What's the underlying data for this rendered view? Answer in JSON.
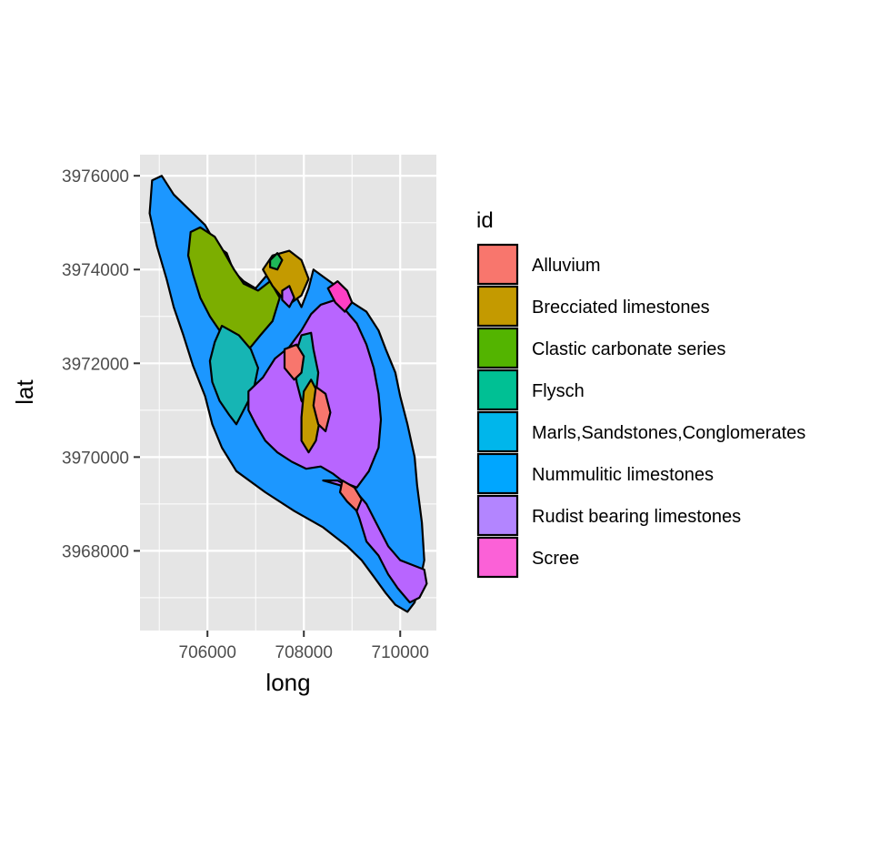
{
  "chart_data": {
    "type": "map",
    "xlabel": "long",
    "ylabel": "lat",
    "xlim": [
      704600,
      710750
    ],
    "ylim": [
      3966300,
      3976450
    ],
    "x_ticks": [
      706000,
      708000,
      710000
    ],
    "y_ticks": [
      3968000,
      3970000,
      3972000,
      3974000,
      3976000
    ],
    "x_tick_labels": [
      "706000",
      "708000",
      "710000"
    ],
    "y_tick_labels": [
      "3968000",
      "3970000",
      "3972000",
      "3974000",
      "3976000"
    ],
    "grid": true,
    "panel_background": "#e5e5e5",
    "grid_color": "#ffffff",
    "outline_color": "#000000",
    "legend": {
      "title": "id",
      "placement": "right",
      "entries": [
        {
          "label": "Alluvium",
          "color": "#F8766D"
        },
        {
          "label": "Brecciated limestones",
          "color": "#C49A00"
        },
        {
          "label": "Clastic carbonate series",
          "color": "#53B400"
        },
        {
          "label": "Flysch",
          "color": "#00C094"
        },
        {
          "label": "Marls,Sandstones,Conglomerates",
          "color": "#00B6EB"
        },
        {
          "label": "Nummulitic limestones",
          "color": "#00A6FF"
        },
        {
          "label": "Rudist bearing limestones",
          "color": "#B385FF"
        },
        {
          "label": "Scree",
          "color": "#FB61D7"
        }
      ]
    },
    "polygon_colors": {
      "Alluvium": "#F8766D",
      "Brecciated limestones": "#C49A00",
      "Clastic carbonate series": "#7CAE00",
      "Flysch": "#1FB858",
      "Marls,Sandstones,Conglomerates": "#16B5B4",
      "Nummulitic limestones": "#1C97FF",
      "Rudist bearing limestones": "#B865FF",
      "Scree": "#FF3FC4"
    },
    "units": [
      {
        "id": "Nummulitic limestones",
        "coords": [
          [
            704850,
            3975900
          ],
          [
            705050,
            3976000
          ],
          [
            705300,
            3975600
          ],
          [
            705600,
            3975300
          ],
          [
            705950,
            3974950
          ],
          [
            706200,
            3974500
          ],
          [
            706400,
            3974350
          ],
          [
            706550,
            3973950
          ],
          [
            706750,
            3973750
          ],
          [
            707000,
            3973600
          ],
          [
            707250,
            3973900
          ],
          [
            707500,
            3974000
          ],
          [
            707750,
            3973600
          ],
          [
            707950,
            3973200
          ],
          [
            708100,
            3973600
          ],
          [
            708200,
            3974000
          ],
          [
            708400,
            3973850
          ],
          [
            708600,
            3973700
          ],
          [
            708750,
            3973500
          ],
          [
            709000,
            3973300
          ],
          [
            709300,
            3973100
          ],
          [
            709550,
            3972700
          ],
          [
            709700,
            3972300
          ],
          [
            709900,
            3971800
          ],
          [
            710000,
            3971300
          ],
          [
            710150,
            3970700
          ],
          [
            710300,
            3970000
          ],
          [
            710350,
            3969400
          ],
          [
            710450,
            3968600
          ],
          [
            710500,
            3967800
          ],
          [
            710400,
            3967300
          ],
          [
            710300,
            3966900
          ],
          [
            710150,
            3966700
          ],
          [
            709900,
            3966850
          ],
          [
            709700,
            3967100
          ],
          [
            709450,
            3967450
          ],
          [
            709200,
            3967800
          ],
          [
            708900,
            3968100
          ],
          [
            708400,
            3968500
          ],
          [
            707800,
            3968850
          ],
          [
            707200,
            3969250
          ],
          [
            706600,
            3969700
          ],
          [
            706300,
            3970200
          ],
          [
            706100,
            3970700
          ],
          [
            705950,
            3971300
          ],
          [
            705700,
            3971950
          ],
          [
            705500,
            3972600
          ],
          [
            705300,
            3973200
          ],
          [
            705150,
            3973800
          ],
          [
            704950,
            3974500
          ],
          [
            704800,
            3975200
          ]
        ]
      },
      {
        "id": "Clastic carbonate series",
        "coords": [
          [
            705650,
            3974800
          ],
          [
            705850,
            3974900
          ],
          [
            706150,
            3974700
          ],
          [
            706300,
            3974450
          ],
          [
            706550,
            3974000
          ],
          [
            706750,
            3973700
          ],
          [
            707050,
            3973550
          ],
          [
            707300,
            3973750
          ],
          [
            707500,
            3973400
          ],
          [
            707350,
            3972900
          ],
          [
            707100,
            3972600
          ],
          [
            706900,
            3972350
          ],
          [
            706600,
            3972200
          ],
          [
            706400,
            3972450
          ],
          [
            706250,
            3972700
          ],
          [
            706050,
            3973000
          ],
          [
            705850,
            3973400
          ],
          [
            705700,
            3973900
          ],
          [
            705600,
            3974300
          ]
        ]
      },
      {
        "id": "Marls,Sandstones,Conglomerates",
        "coords": [
          [
            706300,
            3972800
          ],
          [
            706650,
            3972600
          ],
          [
            706900,
            3972300
          ],
          [
            707050,
            3971900
          ],
          [
            706950,
            3971400
          ],
          [
            706750,
            3971000
          ],
          [
            706600,
            3970700
          ],
          [
            706450,
            3970900
          ],
          [
            706250,
            3971200
          ],
          [
            706100,
            3971600
          ],
          [
            706050,
            3972050
          ],
          [
            706150,
            3972450
          ]
        ]
      },
      {
        "id": "Rudist bearing limestones",
        "coords": [
          [
            706850,
            3971400
          ],
          [
            707150,
            3971700
          ],
          [
            707400,
            3972100
          ],
          [
            707700,
            3972350
          ],
          [
            707950,
            3972700
          ],
          [
            708150,
            3973050
          ],
          [
            708350,
            3973250
          ],
          [
            708650,
            3973350
          ],
          [
            708850,
            3973150
          ],
          [
            709100,
            3972850
          ],
          [
            709300,
            3972400
          ],
          [
            709450,
            3971900
          ],
          [
            709550,
            3971350
          ],
          [
            709600,
            3970800
          ],
          [
            709550,
            3970200
          ],
          [
            709350,
            3969700
          ],
          [
            709100,
            3969350
          ],
          [
            708850,
            3969450
          ],
          [
            708600,
            3969650
          ],
          [
            708350,
            3969800
          ],
          [
            708050,
            3969750
          ],
          [
            707750,
            3969900
          ],
          [
            707450,
            3970100
          ],
          [
            707200,
            3970350
          ],
          [
            707000,
            3970700
          ],
          [
            706850,
            3971000
          ]
        ]
      },
      {
        "id": "Rudist bearing limestones",
        "coords": [
          [
            708400,
            3969500
          ],
          [
            708750,
            3969400
          ],
          [
            709000,
            3969100
          ],
          [
            709150,
            3968700
          ],
          [
            709300,
            3968200
          ],
          [
            709550,
            3967900
          ],
          [
            709750,
            3967500
          ],
          [
            709950,
            3967200
          ],
          [
            710200,
            3966900
          ],
          [
            710400,
            3967000
          ],
          [
            710550,
            3967300
          ],
          [
            710500,
            3967600
          ],
          [
            710250,
            3967700
          ],
          [
            710000,
            3967800
          ],
          [
            709750,
            3968100
          ],
          [
            709500,
            3968600
          ],
          [
            709300,
            3969000
          ],
          [
            709050,
            3969300
          ],
          [
            708700,
            3969500
          ]
        ]
      },
      {
        "id": "Marls,Sandstones,Conglomerates",
        "coords": [
          [
            707950,
            3972600
          ],
          [
            708150,
            3972650
          ],
          [
            708200,
            3972300
          ],
          [
            708300,
            3971800
          ],
          [
            708250,
            3971350
          ],
          [
            708100,
            3971000
          ],
          [
            707950,
            3971200
          ],
          [
            707850,
            3971600
          ],
          [
            707800,
            3972100
          ]
        ]
      },
      {
        "id": "Brecciated limestones",
        "coords": [
          [
            707150,
            3974000
          ],
          [
            707350,
            3974300
          ],
          [
            707700,
            3974400
          ],
          [
            707950,
            3974200
          ],
          [
            708100,
            3973800
          ],
          [
            707950,
            3973450
          ],
          [
            707750,
            3973300
          ],
          [
            707550,
            3973400
          ],
          [
            707350,
            3973650
          ]
        ]
      },
      {
        "id": "Brecciated limestones",
        "coords": [
          [
            708000,
            3971400
          ],
          [
            708150,
            3971650
          ],
          [
            708300,
            3971350
          ],
          [
            708350,
            3970900
          ],
          [
            708250,
            3970350
          ],
          [
            708100,
            3970100
          ],
          [
            707950,
            3970350
          ],
          [
            707950,
            3970850
          ]
        ]
      },
      {
        "id": "Alluvium",
        "coords": [
          [
            707600,
            3972300
          ],
          [
            707850,
            3972400
          ],
          [
            708000,
            3972150
          ],
          [
            707950,
            3971800
          ],
          [
            707800,
            3971650
          ],
          [
            707600,
            3971900
          ]
        ]
      },
      {
        "id": "Alluvium",
        "coords": [
          [
            708250,
            3971500
          ],
          [
            708450,
            3971350
          ],
          [
            708550,
            3970950
          ],
          [
            708450,
            3970550
          ],
          [
            708300,
            3970700
          ],
          [
            708200,
            3971100
          ]
        ]
      },
      {
        "id": "Alluvium",
        "coords": [
          [
            708800,
            3969500
          ],
          [
            709050,
            3969350
          ],
          [
            709200,
            3969100
          ],
          [
            709100,
            3968850
          ],
          [
            708900,
            3969050
          ],
          [
            708750,
            3969250
          ]
        ]
      },
      {
        "id": "Flysch",
        "coords": [
          [
            707300,
            3974200
          ],
          [
            707450,
            3974350
          ],
          [
            707550,
            3974200
          ],
          [
            707450,
            3974000
          ],
          [
            707300,
            3974050
          ]
        ]
      },
      {
        "id": "Scree",
        "coords": [
          [
            708500,
            3973600
          ],
          [
            708700,
            3973750
          ],
          [
            708900,
            3973550
          ],
          [
            709000,
            3973300
          ],
          [
            708850,
            3973100
          ],
          [
            708650,
            3973300
          ]
        ]
      },
      {
        "id": "Rudist bearing limestones",
        "coords": [
          [
            707550,
            3973550
          ],
          [
            707700,
            3973650
          ],
          [
            707800,
            3973400
          ],
          [
            707700,
            3973200
          ],
          [
            707550,
            3973350
          ]
        ]
      }
    ]
  }
}
